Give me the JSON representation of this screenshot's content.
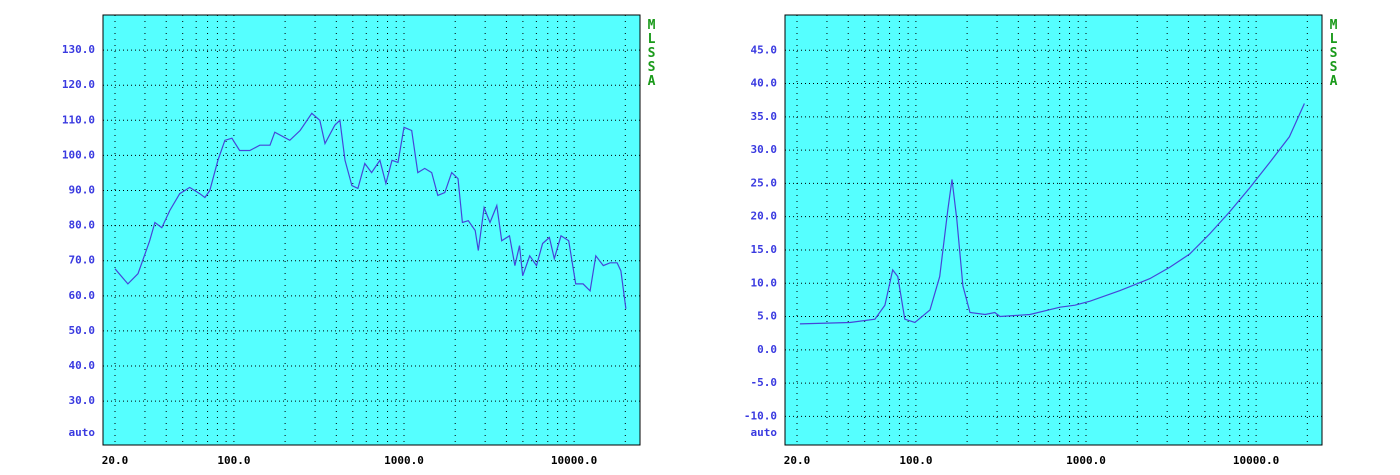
{
  "chart_data": [
    {
      "type": "line",
      "log_x": true,
      "grid": true,
      "xlim": [
        17,
        24400
      ],
      "ylim": [
        17.5,
        140
      ],
      "xticks": [
        {
          "value": 20,
          "label": "20.0"
        },
        {
          "value": 100,
          "label": "100.0"
        },
        {
          "value": 1000,
          "label": "1000.0"
        },
        {
          "value": 10000,
          "label": "10000.0"
        }
      ],
      "xgrid": [
        20,
        30,
        40,
        50,
        60,
        70,
        80,
        90,
        100,
        200,
        300,
        400,
        500,
        600,
        700,
        800,
        900,
        1000,
        2000,
        3000,
        4000,
        5000,
        6000,
        7000,
        8000,
        9000,
        10000,
        20000
      ],
      "yticks": [
        {
          "value": 30,
          "label": "30.0"
        },
        {
          "value": 40,
          "label": "40.0"
        },
        {
          "value": 50,
          "label": "50.0"
        },
        {
          "value": 60,
          "label": "60.0"
        },
        {
          "value": 70,
          "label": "70.0"
        },
        {
          "value": 80,
          "label": "80.0"
        },
        {
          "value": 90,
          "label": "90.0"
        },
        {
          "value": 100,
          "label": "100.0"
        },
        {
          "value": 110,
          "label": "110.0"
        },
        {
          "value": 120,
          "label": "120.0"
        },
        {
          "value": 130,
          "label": "130.0"
        }
      ],
      "auto_label": "auto",
      "side_label": "MLSSA",
      "x": [
        20,
        23.8,
        27.3,
        32,
        34.3,
        37.7,
        42,
        48,
        55,
        63,
        67.5,
        72.2,
        80.5,
        88.5,
        97.3,
        108,
        124,
        142,
        163,
        174,
        213,
        245,
        287,
        320,
        343,
        392,
        420,
        450,
        494,
        536,
        588,
        645,
        722,
        783,
        850,
        922,
        1000,
        1110,
        1206,
        1324,
        1454,
        1581,
        1737,
        1907,
        2076,
        2203,
        2388,
        2621,
        2733,
        2956,
        3203,
        3512,
        3755,
        4170,
        4484,
        4776,
        4985,
        5482,
        6012,
        6528,
        7160,
        7645,
        8380,
        9300,
        10220,
        11300,
        12420,
        13420,
        14840,
        16280,
        17890,
        18850,
        20160
      ],
      "series": [
        {
          "color": "#4646d8",
          "values": [
            67.7,
            63.4,
            66.3,
            75.7,
            80.9,
            79.4,
            84.3,
            89.1,
            90.9,
            89.1,
            88,
            90,
            98.6,
            104.3,
            104.9,
            101.4,
            101.4,
            102.9,
            102.9,
            106.6,
            104.3,
            107.1,
            112,
            110,
            103.4,
            108.6,
            110,
            98.6,
            91.4,
            90.6,
            97.7,
            95.1,
            98.6,
            92,
            98.6,
            98,
            108,
            107.1,
            95.1,
            96.3,
            95.1,
            88.6,
            89.4,
            95.1,
            93.4,
            80.9,
            81.4,
            78.6,
            72.9,
            85.1,
            80.9,
            85.7,
            75.7,
            77.1,
            68.6,
            74.3,
            65.7,
            71.4,
            68.6,
            74.9,
            76.6,
            70.6,
            77.1,
            75.7,
            63.4,
            63.4,
            61.4,
            71.4,
            68.6,
            69.4,
            69.4,
            67.1,
            56.3
          ]
        }
      ]
    },
    {
      "type": "line",
      "log_x": true,
      "grid": true,
      "xlim": [
        17,
        24400
      ],
      "ylim": [
        -14.3,
        50.3
      ],
      "xticks": [
        {
          "value": 20,
          "label": "20.0"
        },
        {
          "value": 100,
          "label": "100.0"
        },
        {
          "value": 1000,
          "label": "1000.0"
        },
        {
          "value": 10000,
          "label": "10000.0"
        }
      ],
      "xgrid": [
        20,
        30,
        40,
        50,
        60,
        70,
        80,
        90,
        100,
        200,
        300,
        400,
        500,
        600,
        700,
        800,
        900,
        1000,
        2000,
        3000,
        4000,
        5000,
        6000,
        7000,
        8000,
        9000,
        10000,
        20000
      ],
      "yticks": [
        {
          "value": -10,
          "label": "-10.0"
        },
        {
          "value": -5,
          "label": "-5.0"
        },
        {
          "value": 0,
          "label": "0.0"
        },
        {
          "value": 5,
          "label": "5.0"
        },
        {
          "value": 10,
          "label": "10.0"
        },
        {
          "value": 15,
          "label": "15.0"
        },
        {
          "value": 20,
          "label": "20.0"
        },
        {
          "value": 25,
          "label": "25.0"
        },
        {
          "value": 30,
          "label": "30.0"
        },
        {
          "value": 35,
          "label": "35.0"
        },
        {
          "value": 40,
          "label": "40.0"
        },
        {
          "value": 45,
          "label": "45.0"
        }
      ],
      "auto_label": "auto",
      "side_label": "MLSSA",
      "x": [
        20.8,
        40.9,
        57.4,
        65.7,
        73,
        78.3,
        86,
        98.6,
        121,
        138,
        154,
        163,
        174,
        189,
        208,
        255,
        291,
        312,
        468,
        703,
        861,
        1056,
        1585,
        2375,
        3110,
        4070,
        5330,
        6980,
        9140,
        11980,
        15690,
        19240
      ],
      "series": [
        {
          "color": "#4646d8",
          "values": [
            3.9,
            4.1,
            4.6,
            6.7,
            12,
            11,
            4.6,
            4.1,
            6,
            11,
            21,
            25.6,
            19.6,
            9.6,
            5.6,
            5.3,
            5.6,
            5,
            5.3,
            6.4,
            6.7,
            7.3,
            8.9,
            10.7,
            12.4,
            14.4,
            17.4,
            20.7,
            24.3,
            28.1,
            32,
            37
          ]
        }
      ]
    }
  ]
}
